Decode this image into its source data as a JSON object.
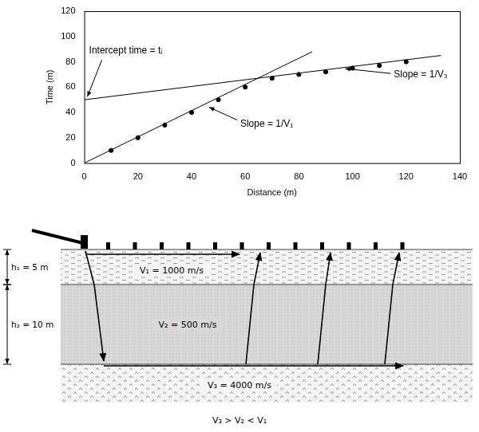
{
  "chart_data": {
    "type": "scatter",
    "x_label": "Distance (m)",
    "y_label": "Time (m)",
    "xlim": [
      0,
      140
    ],
    "xticks": [
      0,
      20,
      40,
      60,
      80,
      100,
      120,
      140
    ],
    "ylim": [
      0,
      120
    ],
    "yticks": [
      0,
      20,
      40,
      60,
      80,
      100,
      120
    ],
    "grid": false,
    "series": [
      {
        "type": "scatter",
        "marker": "circle",
        "color": "#000000",
        "x": [
          10,
          20,
          30,
          40,
          50,
          60,
          70,
          80,
          90,
          100,
          110,
          120
        ],
        "values": [
          10,
          20,
          30,
          40,
          50,
          60,
          67,
          70,
          72,
          75,
          77,
          80
        ]
      },
      {
        "type": "line",
        "line_style": "solid",
        "color": "#000000",
        "x": [
          0,
          85
        ],
        "values": [
          0,
          88
        ]
      },
      {
        "type": "line",
        "line_style": "solid",
        "color": "#000000",
        "x": [
          0,
          133
        ],
        "values": [
          50,
          85
        ]
      }
    ],
    "annotations": [
      {
        "text": "Intercept time = tᵢ"
      },
      {
        "text": "Slope = 1/V₃"
      },
      {
        "text": "Slope = 1/V₁"
      }
    ]
  },
  "diagram": {
    "layers": [
      {
        "thickness_label": "h₁ = 5 m",
        "velocity_label": "V₁ = 1000 m/s"
      },
      {
        "thickness_label": "h₂ = 10 m",
        "velocity_label": "V₂ = 500 m/s"
      },
      {
        "velocity_label": "V₃ = 4000 m/s"
      }
    ],
    "caption": "V₃ > V₂ < V₁"
  }
}
